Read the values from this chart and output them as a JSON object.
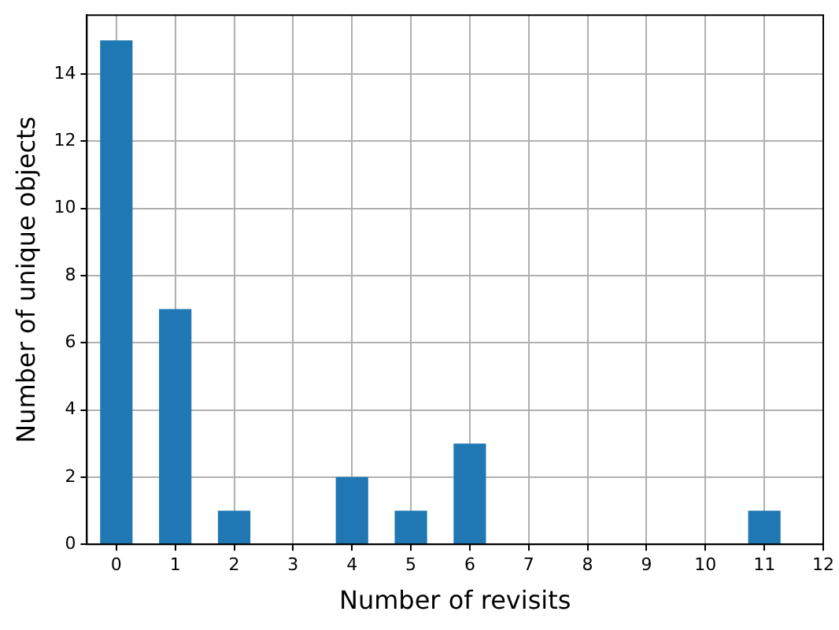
{
  "chart_data": {
    "type": "bar",
    "xlabel": "Number of revisits",
    "ylabel": "Number of unique objects",
    "x": [
      0,
      1,
      2,
      4,
      5,
      6,
      11
    ],
    "values": [
      15,
      7,
      1,
      2,
      1,
      3,
      1
    ],
    "color": "#1f77b4",
    "xlim": [
      -0.5,
      12
    ],
    "xticks": [
      0,
      1,
      2,
      3,
      4,
      5,
      6,
      7,
      8,
      9,
      10,
      11,
      12
    ],
    "ylim": [
      0,
      15.75
    ],
    "yticks": [
      0,
      2,
      4,
      6,
      8,
      10,
      12,
      14
    ],
    "grid": true
  }
}
